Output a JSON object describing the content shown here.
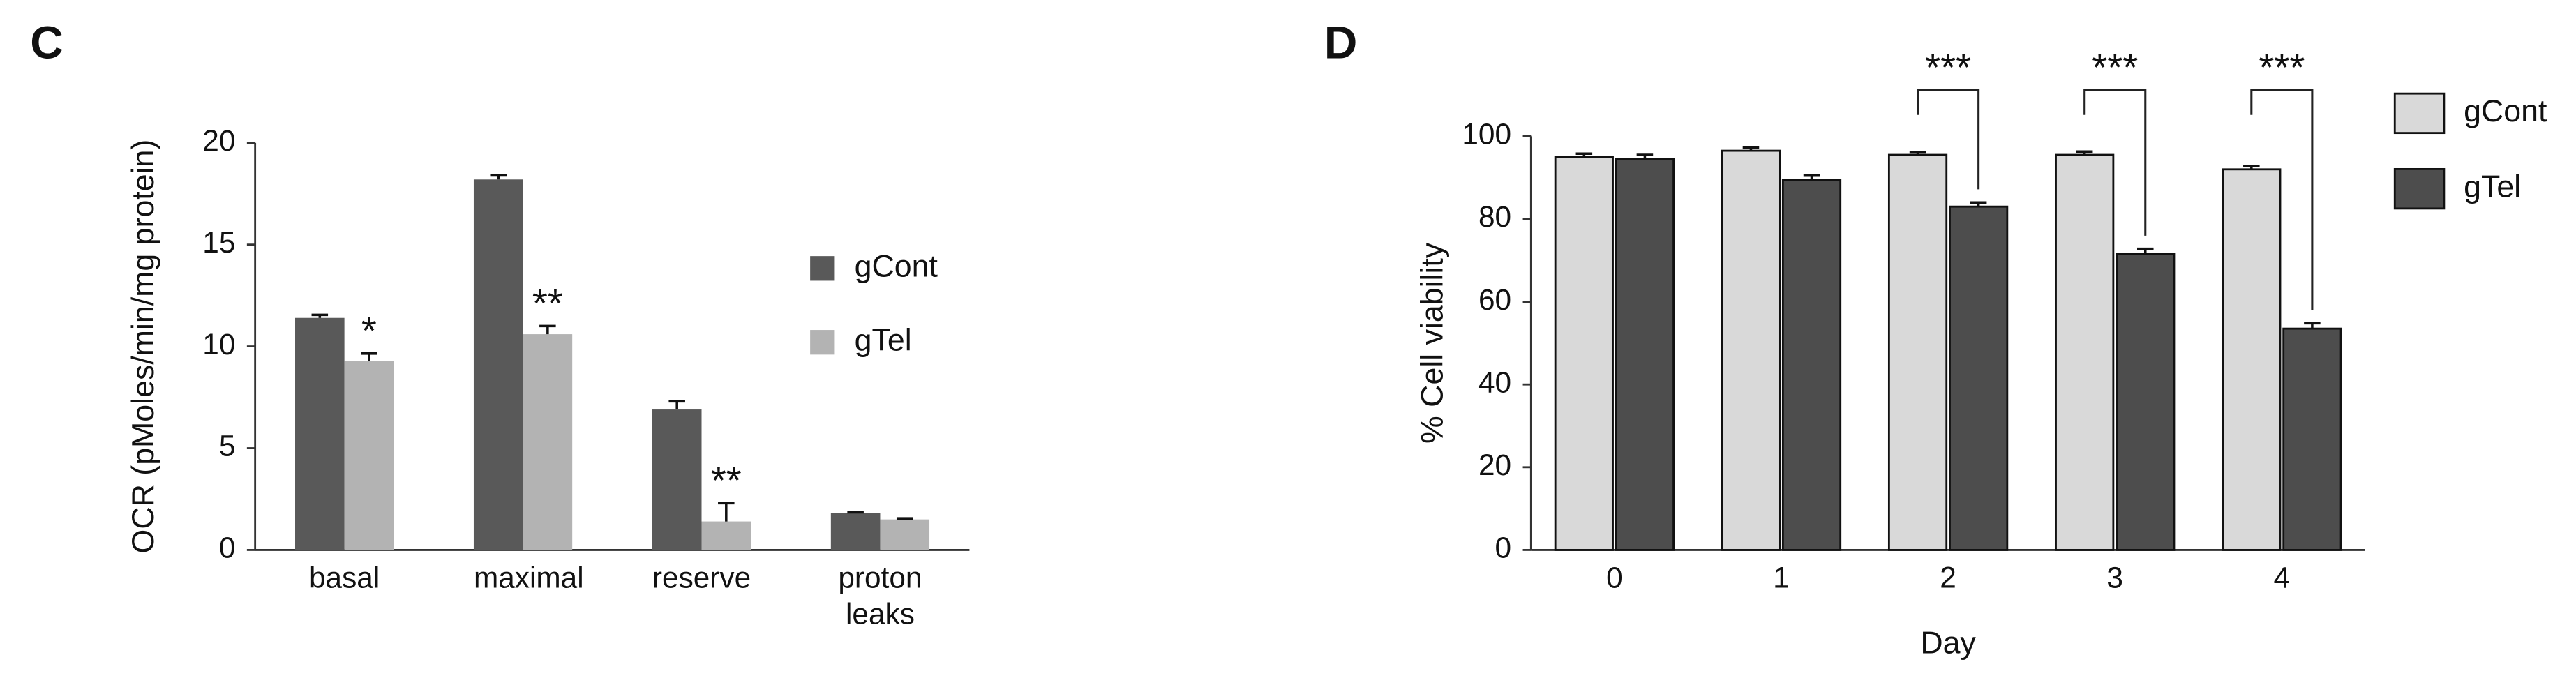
{
  "chart_data": [
    {
      "type": "bar",
      "title": "C",
      "ylabel": "OCR (pMoles/min/mg protein)",
      "categories": [
        "basal",
        "maximal",
        "reserve",
        "proton leaks"
      ],
      "series": [
        {
          "name": "gCont",
          "color": "#595959",
          "values": [
            11.4,
            18.2,
            6.9,
            1.8
          ],
          "errors": [
            0.15,
            0.2,
            0.4,
            0.05
          ]
        },
        {
          "name": "gTel",
          "color": "#b3b3b3",
          "values": [
            9.3,
            10.6,
            1.4,
            1.5
          ],
          "errors": [
            0.35,
            0.4,
            0.9,
            0.05
          ]
        }
      ],
      "significance": [
        "*",
        "**",
        "**",
        null
      ],
      "ylim": [
        0,
        20
      ],
      "yticks": [
        0,
        5,
        10,
        15,
        20
      ]
    },
    {
      "type": "bar",
      "title": "D",
      "ylabel": "% Cell viability",
      "xlabel": "Day",
      "categories": [
        "0",
        "1",
        "2",
        "3",
        "4"
      ],
      "series": [
        {
          "name": "gCont",
          "color": "#d9d9d9",
          "values": [
            95,
            96.5,
            95.5,
            95.5,
            92
          ],
          "errors": [
            0.8,
            0.8,
            0.6,
            0.8,
            0.8
          ]
        },
        {
          "name": "gTel",
          "color": "#4d4d4d",
          "values": [
            94.5,
            89.5,
            83,
            71.5,
            53.5
          ],
          "errors": [
            1,
            1,
            1,
            1.3,
            1.3
          ]
        }
      ],
      "significance": [
        null,
        null,
        "***",
        "***",
        "***"
      ],
      "ylim": [
        0,
        100
      ],
      "yticks": [
        0,
        20,
        40,
        60,
        80,
        100
      ]
    }
  ]
}
